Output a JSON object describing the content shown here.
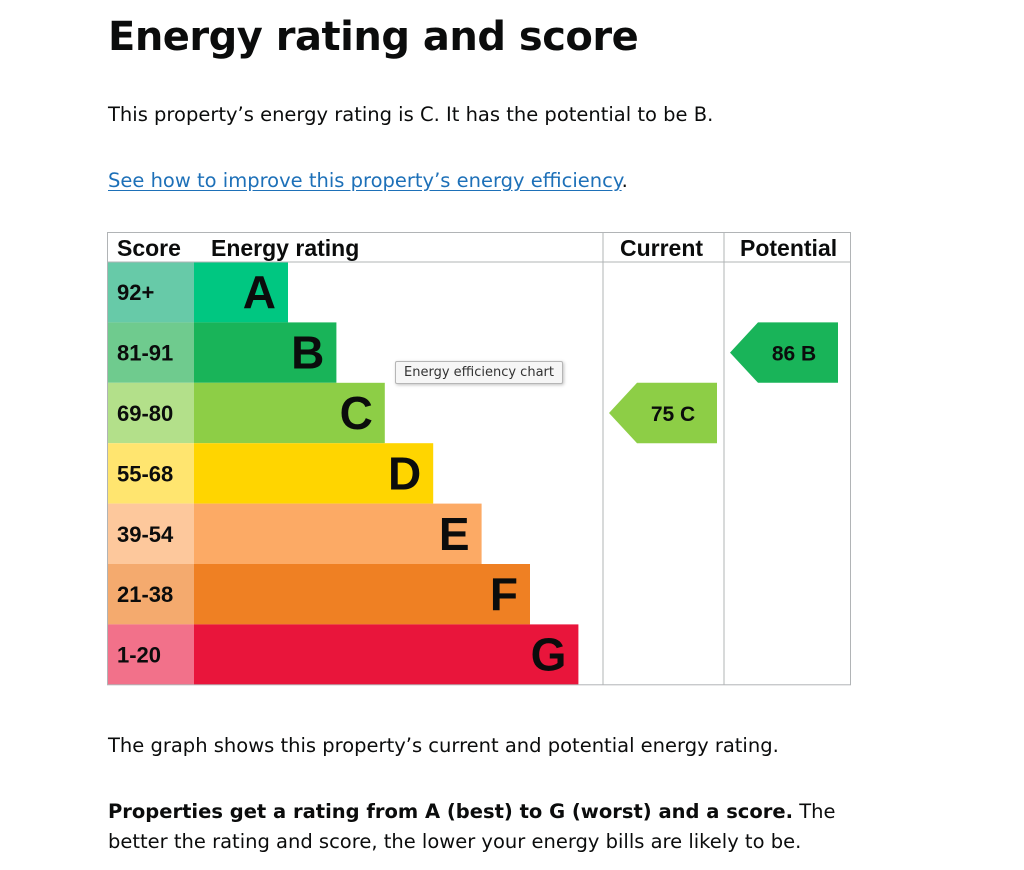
{
  "page": {
    "title": "Energy rating and score",
    "intro": "This property’s energy rating is C. It has the potential to be B.",
    "improve_link": "See how to improve this property’s energy efficiency",
    "improve_link_suffix": ".",
    "graph_note": "The graph shows this property’s current and potential energy rating.",
    "rating_note_bold": "Properties get a rating from A (best) to G (worst) and a score.",
    "rating_note_rest": " The better the rating and score, the lower your energy bills are likely to be.",
    "tooltip": "Energy efficiency chart"
  },
  "chart_data": {
    "type": "bar",
    "headers": [
      "Score",
      "Energy rating",
      "Current",
      "Potential"
    ],
    "bands": [
      {
        "score": "92+",
        "letter": "A",
        "color": "#00c781",
        "score_color": "#67caa8"
      },
      {
        "score": "81-91",
        "letter": "B",
        "color": "#19b459",
        "score_color": "#6fcb8e"
      },
      {
        "score": "69-80",
        "letter": "C",
        "color": "#8dce46",
        "score_color": "#b3e08a"
      },
      {
        "score": "55-68",
        "letter": "D",
        "color": "#ffd500",
        "score_color": "#ffe56f"
      },
      {
        "score": "39-54",
        "letter": "E",
        "color": "#fcaa65",
        "score_color": "#fdc89c"
      },
      {
        "score": "21-38",
        "letter": "F",
        "color": "#ef8023",
        "score_color": "#f4aa6e"
      },
      {
        "score": "1-20",
        "letter": "G",
        "color": "#e9153b",
        "score_color": "#f2718a"
      }
    ],
    "current": {
      "value": 75,
      "letter": "C",
      "label": "75  C",
      "color": "#8dce46"
    },
    "potential": {
      "value": 86,
      "letter": "B",
      "label": "86  B",
      "color": "#19b459"
    }
  }
}
